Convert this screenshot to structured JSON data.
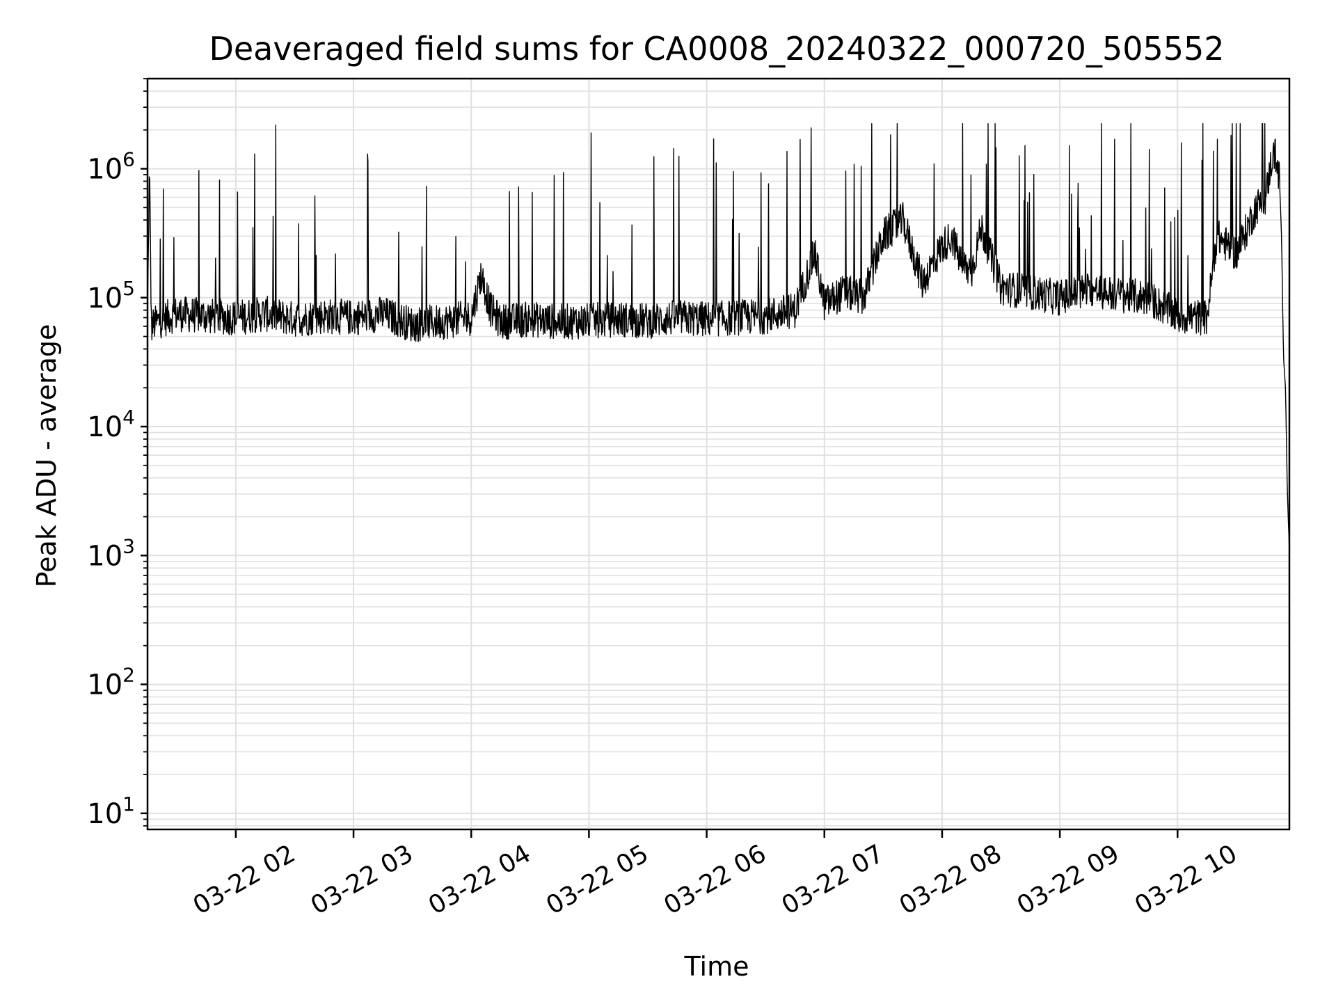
{
  "chart_data": {
    "type": "line",
    "title": "Deaveraged field sums for CA0008_20240322_000720_505552",
    "xlabel": "Time",
    "ylabel": "Peak ADU - average",
    "yscale": "log",
    "ylim": [
      7.5,
      5000000
    ],
    "xlim": [
      "03-22 01:15",
      "03-22 10:57"
    ],
    "x_tick_labels": [
      "03-22 02",
      "03-22 03",
      "03-22 04",
      "03-22 05",
      "03-22 06",
      "03-22 07",
      "03-22 08",
      "03-22 09",
      "03-22 10"
    ],
    "x_tick_times": [
      "03-22 02:00",
      "03-22 03:00",
      "03-22 04:00",
      "03-22 05:00",
      "03-22 06:00",
      "03-22 07:00",
      "03-22 08:00",
      "03-22 09:00",
      "03-22 10:00"
    ],
    "y_tick_labels": [
      {
        "base": "10",
        "exp": "1"
      },
      {
        "base": "10",
        "exp": "2"
      },
      {
        "base": "10",
        "exp": "3"
      },
      {
        "base": "10",
        "exp": "4"
      },
      {
        "base": "10",
        "exp": "5"
      },
      {
        "base": "10",
        "exp": "6"
      }
    ],
    "y_tick_values": [
      10,
      100,
      1000,
      10000,
      100000,
      1000000
    ],
    "grid": true,
    "line_color": "#000000",
    "grid_color": "#e0e0e0",
    "series": [
      {
        "x": [
          "03-22 01:15",
          "03-22 01:16",
          "03-22 01:17",
          "03-22 01:20",
          "03-22 01:30",
          "03-22 01:45",
          "03-22 02:00",
          "03-22 02:15",
          "03-22 02:30",
          "03-22 02:45",
          "03-22 03:00",
          "03-22 03:15",
          "03-22 03:30",
          "03-22 03:45",
          "03-22 04:00",
          "03-22 04:05",
          "03-22 04:10",
          "03-22 04:15",
          "03-22 04:30",
          "03-22 04:45",
          "03-22 05:00",
          "03-22 05:15",
          "03-22 05:30",
          "03-22 05:45",
          "03-22 06:00",
          "03-22 06:15",
          "03-22 06:30",
          "03-22 06:45",
          "03-22 06:55",
          "03-22 07:00",
          "03-22 07:10",
          "03-22 07:20",
          "03-22 07:30",
          "03-22 07:40",
          "03-22 07:50",
          "03-22 08:00",
          "03-22 08:05",
          "03-22 08:10",
          "03-22 08:15",
          "03-22 08:20",
          "03-22 08:30",
          "03-22 08:45",
          "03-22 09:00",
          "03-22 09:15",
          "03-22 09:30",
          "03-22 09:45",
          "03-22 10:00",
          "03-22 10:15",
          "03-22 10:20",
          "03-22 10:30",
          "03-22 10:40",
          "03-22 10:45",
          "03-22 10:48",
          "03-22 10:50",
          "03-22 10:52",
          "03-22 10:53",
          "03-22 10:54",
          "03-22 10:55",
          "03-22 10:56",
          "03-22 10:57"
        ],
        "y": [
          70000,
          1000000,
          60000,
          65000,
          75000,
          72000,
          70000,
          75000,
          68000,
          72000,
          70000,
          75000,
          62000,
          65000,
          70000,
          150000,
          80000,
          65000,
          68000,
          65000,
          66000,
          68000,
          66000,
          70000,
          68000,
          70000,
          72000,
          80000,
          220000,
          90000,
          110000,
          100000,
          300000,
          400000,
          130000,
          250000,
          300000,
          180000,
          160000,
          350000,
          120000,
          110000,
          100000,
          115000,
          105000,
          100000,
          72000,
          70000,
          300000,
          220000,
          500000,
          600000,
          1200000,
          1300000,
          800000,
          300000,
          35000,
          20000,
          3000,
          1100
        ]
      }
    ]
  }
}
